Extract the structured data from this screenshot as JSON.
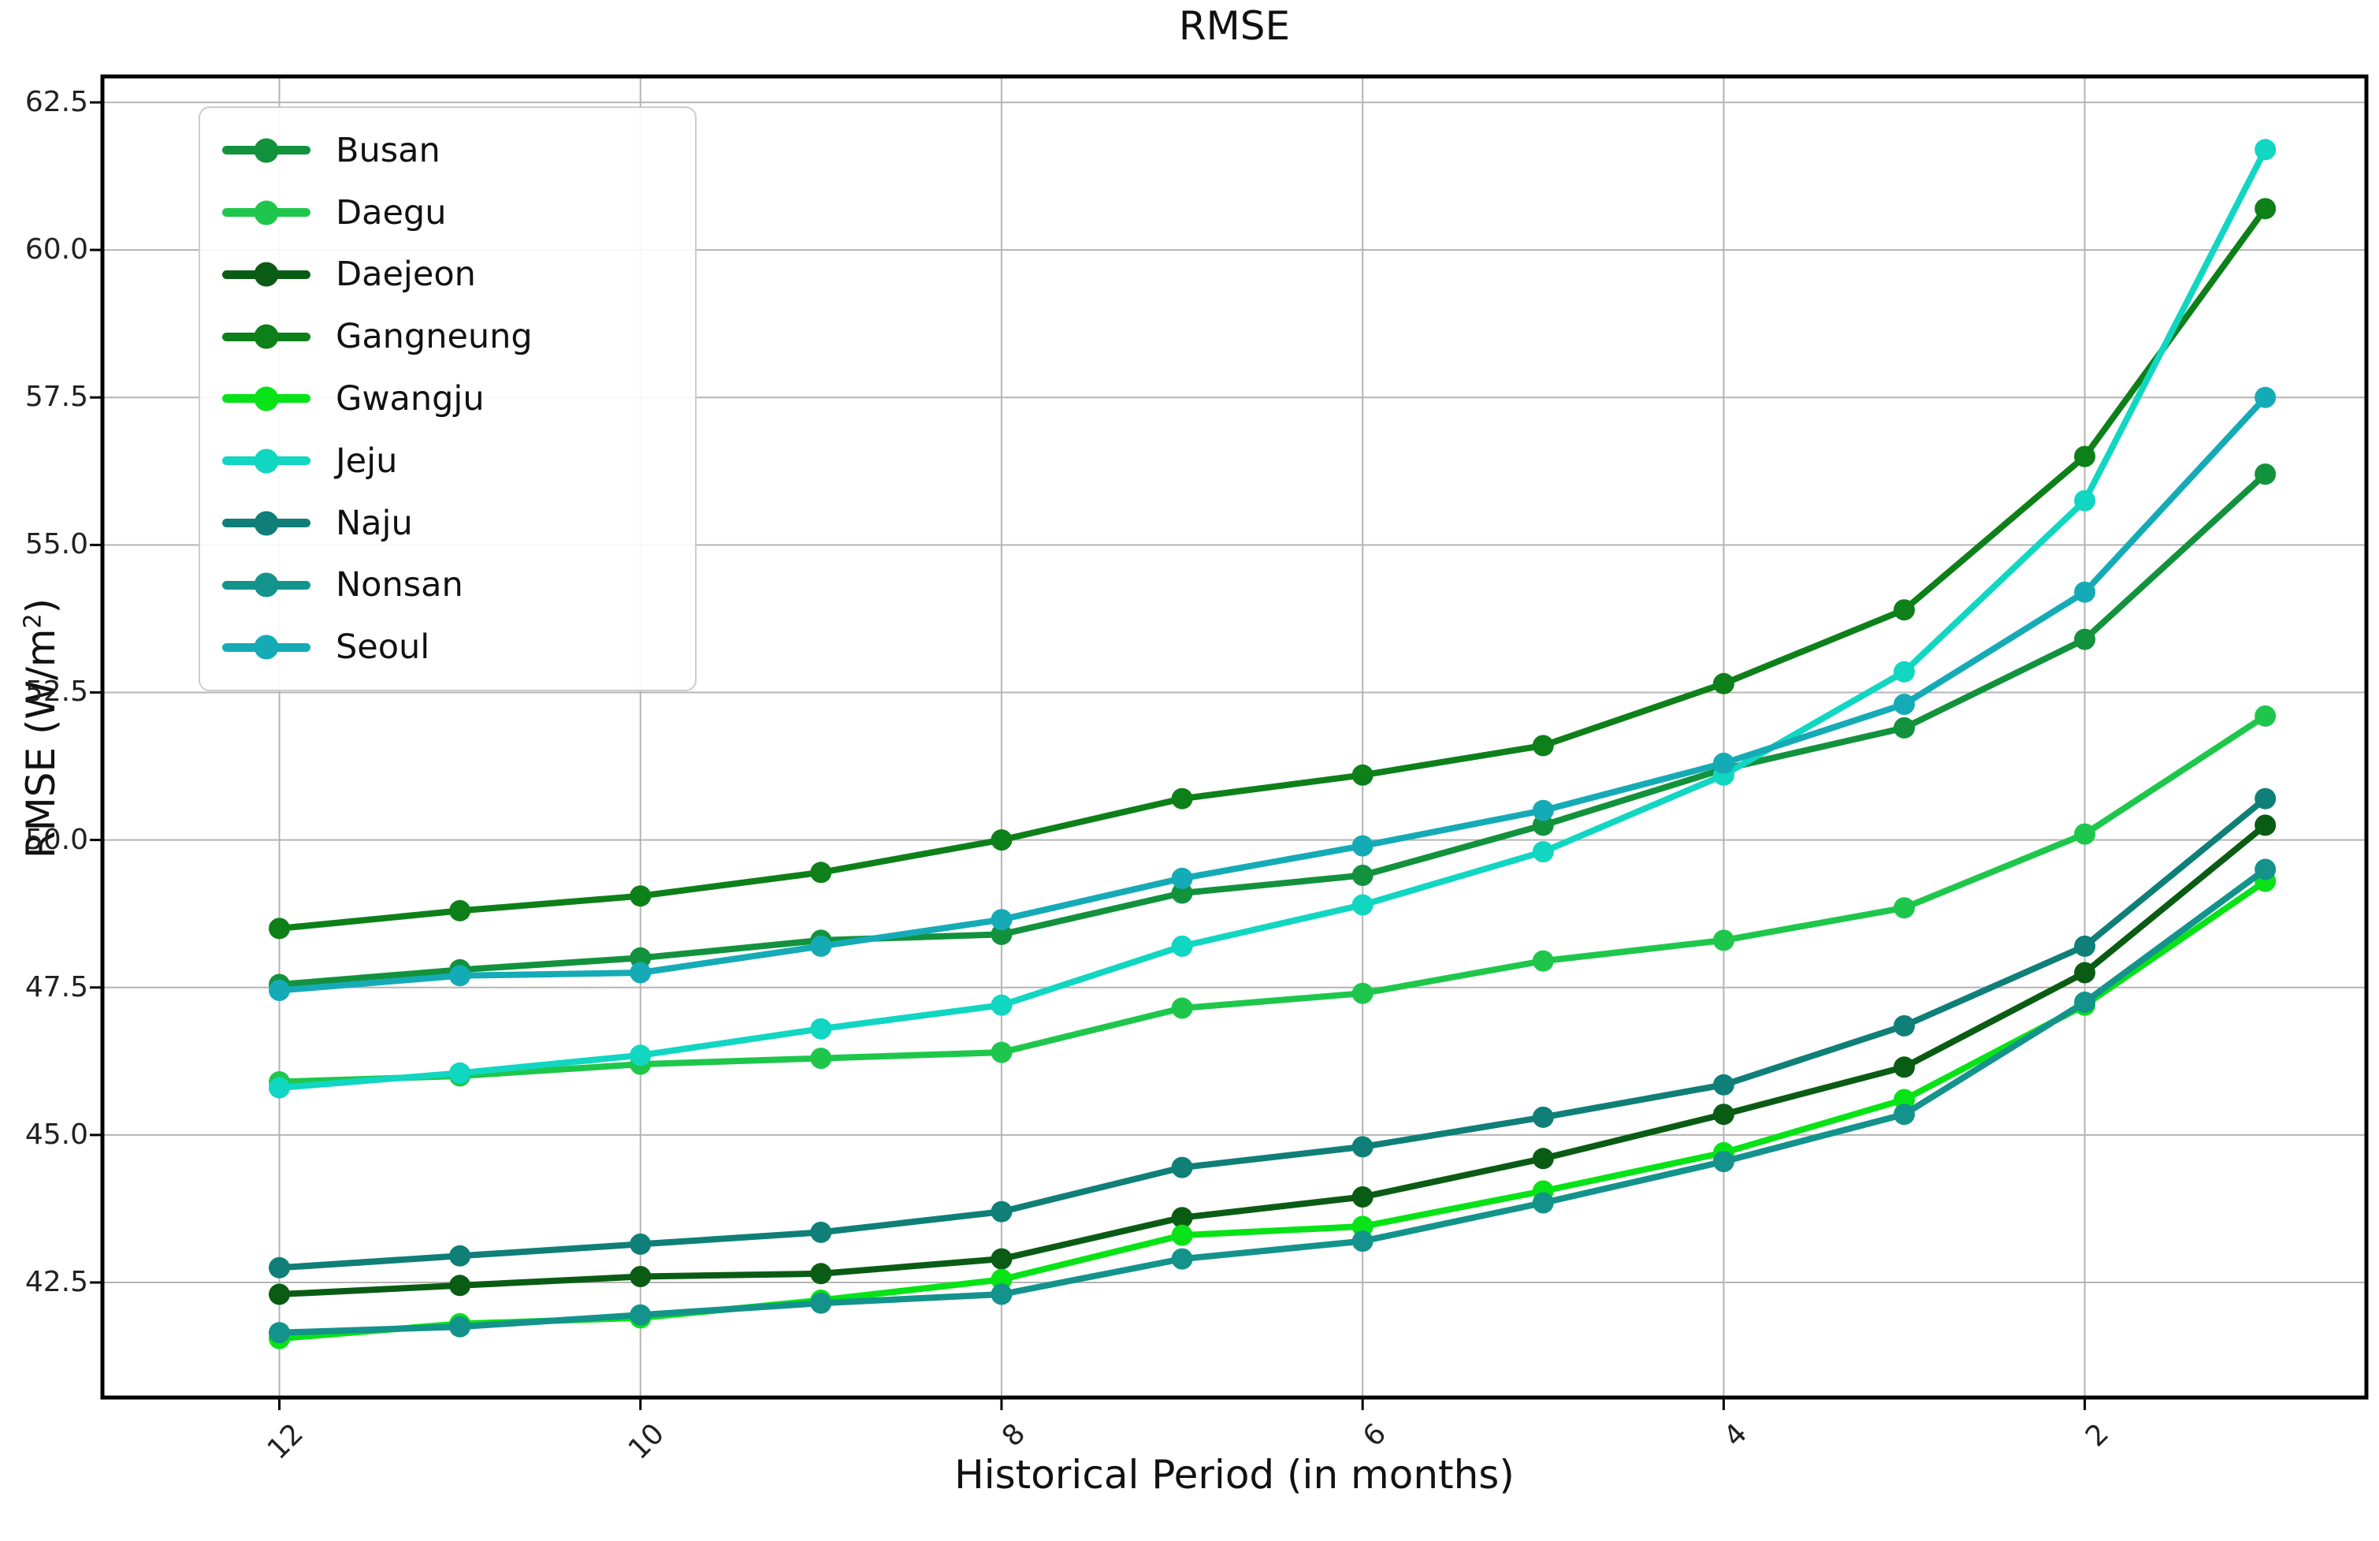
{
  "chart_data": {
    "type": "line",
    "title": "RMSE",
    "xlabel": "Historical Period (in months)",
    "ylabel": "RMSE (W/m²)",
    "ylabel_parts": {
      "prefix": "RMSE (W/m",
      "sup": "2",
      "suffix": ")"
    },
    "x": [
      12,
      11,
      10,
      9,
      8,
      7,
      6,
      5,
      4,
      3,
      2,
      1
    ],
    "xticks": [
      12,
      10,
      8,
      6,
      4,
      2
    ],
    "yticks": [
      42.5,
      45.0,
      47.5,
      50.0,
      52.5,
      55.0,
      57.5,
      60.0,
      62.5
    ],
    "xlim": [
      12.98,
      0.44
    ],
    "ylim": [
      40.55,
      62.94
    ],
    "x_axis_reversed": true,
    "grid": true,
    "grid_color": "#b4b4b4",
    "legend_position": "upper left",
    "series": [
      {
        "name": "Busan",
        "color": "#12923c",
        "values": [
          47.55,
          47.8,
          48.0,
          48.3,
          48.4,
          49.1,
          49.4,
          50.25,
          51.2,
          51.9,
          53.4,
          56.2
        ]
      },
      {
        "name": "Daegu",
        "color": "#1ec74b",
        "values": [
          45.9,
          46.0,
          46.2,
          46.3,
          46.4,
          47.15,
          47.4,
          47.95,
          48.3,
          48.85,
          50.1,
          52.1
        ]
      },
      {
        "name": "Daejeon",
        "color": "#0a5c14",
        "values": [
          42.3,
          42.45,
          42.6,
          42.65,
          42.9,
          43.6,
          43.95,
          44.6,
          45.35,
          46.15,
          47.75,
          50.25
        ]
      },
      {
        "name": "Gangneung",
        "color": "#0d8019",
        "values": [
          48.5,
          48.8,
          49.05,
          49.45,
          50.0,
          50.7,
          51.1,
          51.6,
          52.65,
          53.9,
          56.5,
          60.7
        ]
      },
      {
        "name": "Gwangju",
        "color": "#07e316",
        "values": [
          41.55,
          41.8,
          41.9,
          42.2,
          42.55,
          43.3,
          43.45,
          44.05,
          44.7,
          45.6,
          47.2,
          49.3
        ]
      },
      {
        "name": "Jeju",
        "color": "#10d6c2",
        "values": [
          45.8,
          46.05,
          46.35,
          46.8,
          47.2,
          48.2,
          48.9,
          49.8,
          51.1,
          52.85,
          55.75,
          61.7
        ]
      },
      {
        "name": "Naju",
        "color": "#0f7f78",
        "values": [
          42.75,
          42.95,
          43.15,
          43.35,
          43.7,
          44.45,
          44.8,
          45.3,
          45.85,
          46.85,
          48.2,
          50.7
        ]
      },
      {
        "name": "Nonsan",
        "color": "#13938b",
        "values": [
          41.65,
          41.75,
          41.95,
          42.15,
          42.3,
          42.9,
          43.2,
          43.85,
          44.55,
          45.35,
          47.25,
          49.5
        ]
      },
      {
        "name": "Seoul",
        "color": "#15abb6",
        "values": [
          47.45,
          47.7,
          47.75,
          48.2,
          48.65,
          49.35,
          49.9,
          50.5,
          51.3,
          52.3,
          54.2,
          57.5
        ]
      }
    ]
  }
}
